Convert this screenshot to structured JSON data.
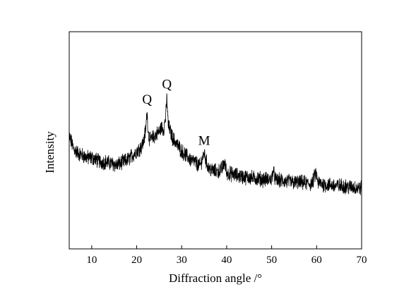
{
  "chart_data": {
    "type": "line",
    "xlabel": "Diffraction angle /°",
    "ylabel": "Intensity",
    "xlim": [
      5,
      70
    ],
    "ylim": [
      0,
      100
    ],
    "x_ticks": [
      10,
      20,
      30,
      40,
      50,
      60,
      70
    ],
    "y_ticks": [],
    "grid": false,
    "legend": "none",
    "series": [
      {
        "x": [
          5,
          5.5,
          6,
          7,
          8,
          9,
          10,
          11,
          12,
          13,
          14,
          15,
          15.5,
          16,
          17,
          18,
          19,
          20,
          21,
          21.5,
          22,
          22.3,
          22.6,
          23,
          24,
          25,
          25.5,
          26,
          26.5,
          26.7,
          27,
          27.5,
          28,
          29,
          30,
          31,
          32,
          33,
          34,
          34.5,
          35,
          35.5,
          36,
          37,
          38,
          39,
          39.5,
          40,
          41,
          42,
          43,
          44,
          45,
          46,
          47,
          48,
          49,
          50,
          50.3,
          50.7,
          51,
          52,
          53,
          54,
          55,
          56,
          57,
          58,
          59,
          59.8,
          60.3,
          61,
          62,
          63,
          64,
          65,
          66,
          67,
          68,
          69,
          70
        ],
        "y": [
          52,
          49,
          46,
          44,
          43,
          42,
          42,
          41,
          40,
          40,
          39.5,
          39,
          38.5,
          39,
          40,
          41,
          43,
          45,
          47,
          49,
          55,
          63,
          53,
          50,
          52,
          54,
          56,
          55,
          62,
          70,
          57,
          54,
          51,
          48,
          45,
          43,
          41,
          40,
          38,
          41,
          44,
          40,
          37,
          36,
          35.5,
          37,
          40,
          35,
          34.5,
          34,
          33.5,
          33,
          33,
          32.5,
          32.5,
          32,
          32,
          32,
          36,
          33,
          31.5,
          31.5,
          31,
          31,
          30.5,
          30.5,
          30.5,
          30,
          30,
          35,
          30.5,
          30,
          29.5,
          29.5,
          29,
          29,
          29,
          28.5,
          28.5,
          28,
          28
        ]
      }
    ],
    "annotations": [
      {
        "text": "Q",
        "x": 22.3,
        "y": 63
      },
      {
        "text": "Q",
        "x": 26.7,
        "y": 70
      },
      {
        "text": "M",
        "x": 35,
        "y": 44
      }
    ]
  }
}
